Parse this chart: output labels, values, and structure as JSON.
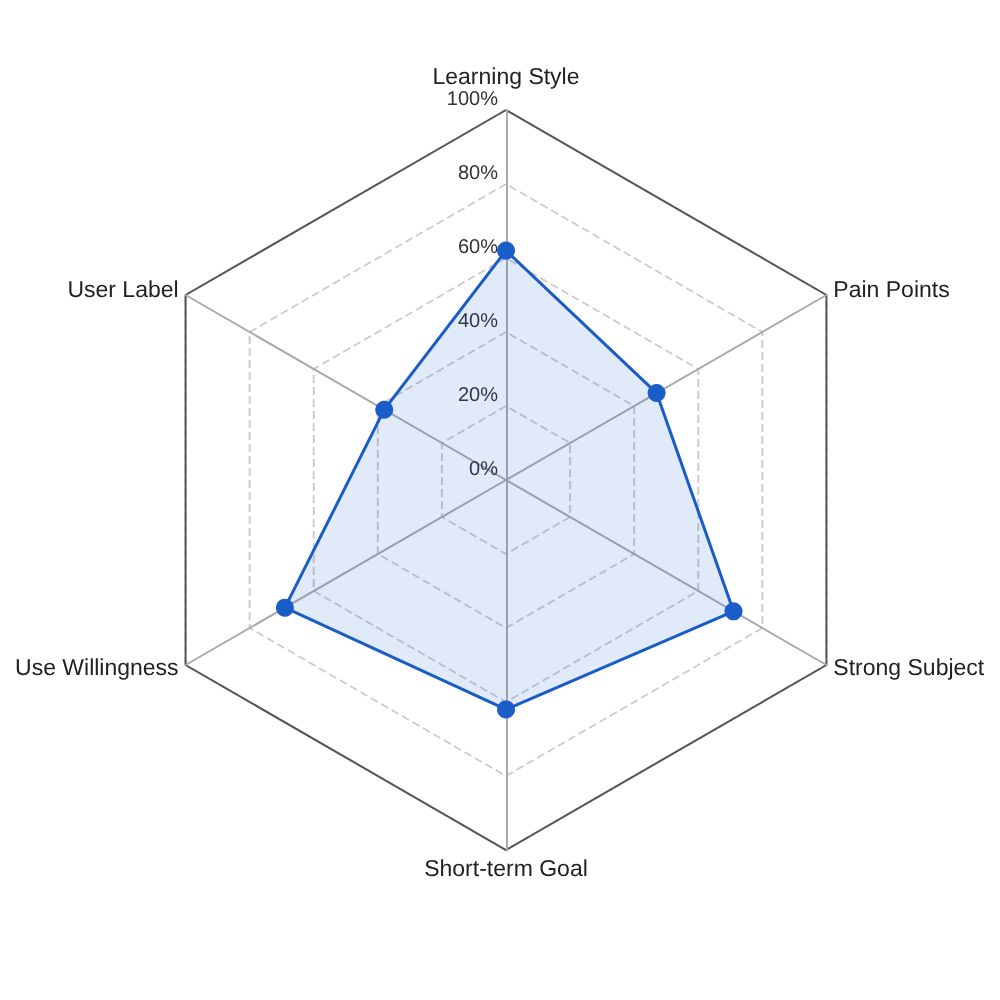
{
  "chart_data": {
    "type": "radar",
    "categories": [
      "Learning Style",
      "Pain Points",
      "Strong Subject",
      "Short-term Goal",
      "Use Willingness",
      "User Label"
    ],
    "series": [
      {
        "color": "#1a5cc8",
        "values": [
          62,
          47,
          71,
          62,
          69,
          38
        ]
      }
    ],
    "ylim": [
      0,
      100
    ],
    "yticks": [
      {
        "value": 0,
        "label": "0%"
      },
      {
        "value": 20,
        "label": "20%"
      },
      {
        "value": 40,
        "label": "40%"
      },
      {
        "value": 60,
        "label": "60%"
      },
      {
        "value": 80,
        "label": "80%"
      },
      {
        "value": 100,
        "label": "100%"
      }
    ],
    "grid": true,
    "marker": "circle"
  }
}
